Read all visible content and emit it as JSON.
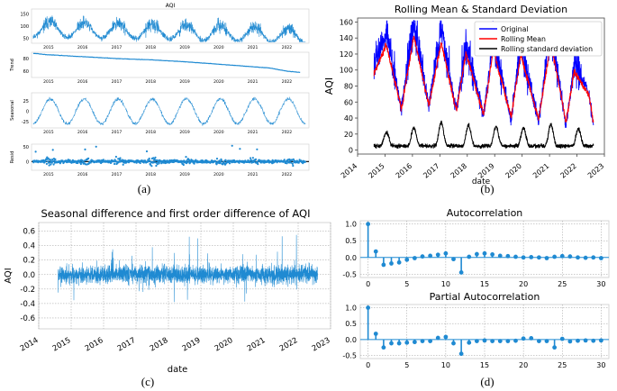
{
  "captions": {
    "a": "(a)",
    "b": "(b)",
    "c": "(c)",
    "d": "(d)"
  },
  "chart_data": [
    {
      "id": "a",
      "type": "line",
      "subplots": [
        {
          "name": "observed",
          "title": "AQI",
          "ylabel": "",
          "yticks": [
            "150",
            "100",
            "50"
          ],
          "ylim": [
            30,
            170
          ],
          "xticks": [
            "2015",
            "2016",
            "2017",
            "2018",
            "2019",
            "2020",
            "2021",
            "2022"
          ],
          "style": "line"
        },
        {
          "name": "trend",
          "ylabel": "Trend",
          "yticks": [
            "80",
            "60"
          ],
          "ylim": [
            50,
            90
          ],
          "trend_points": [
            [
              2014.6,
              88
            ],
            [
              2015,
              86
            ],
            [
              2016,
              83
            ],
            [
              2017,
              80
            ],
            [
              2018,
              78
            ],
            [
              2019,
              75
            ],
            [
              2020,
              71
            ],
            [
              2021,
              67
            ],
            [
              2021.5,
              65
            ],
            [
              2022,
              60
            ],
            [
              2022.4,
              58
            ]
          ],
          "xticks": [
            "2015",
            "2016",
            "2017",
            "2018",
            "2019",
            "2020",
            "2021",
            "2022"
          ],
          "style": "line"
        },
        {
          "name": "seasonal",
          "ylabel": "Seasonal",
          "yticks": [
            "25",
            "0",
            "-25"
          ],
          "ylim": [
            -40,
            45
          ],
          "xticks": [
            "2015",
            "2016",
            "2017",
            "2018",
            "2019",
            "2020",
            "2021",
            "2022"
          ],
          "style": "line"
        },
        {
          "name": "resid",
          "ylabel": "Resid",
          "yticks": [
            "50",
            "0"
          ],
          "ylim": [
            -30,
            60
          ],
          "xticks": [
            "2015",
            "2016",
            "2017",
            "2018",
            "2019",
            "2020",
            "2021",
            "2022"
          ],
          "style": "scatter"
        }
      ],
      "colors": {
        "series": "#1f8ad2",
        "zero_line": "#000000"
      }
    },
    {
      "id": "b",
      "type": "line",
      "title": "Rolling Mean & Standard Deviation",
      "xlabel": "date",
      "ylabel": "AQI",
      "xlim": [
        2014,
        2023
      ],
      "ylim": [
        -5,
        165
      ],
      "yticks": [
        0,
        20,
        40,
        60,
        80,
        100,
        120,
        140,
        160
      ],
      "xticks": [
        "2014",
        "2015",
        "2016",
        "2017",
        "2018",
        "2019",
        "2020",
        "2021",
        "2022",
        "2023"
      ],
      "legend": {
        "position": "top-right",
        "entries": [
          "Original",
          "Rolling Mean",
          "Rolling standard deviation"
        ]
      },
      "series": [
        {
          "name": "Original",
          "color": "#0000ff",
          "peaks": [
            [
              2014.6,
              105
            ],
            [
              2015.05,
              148
            ],
            [
              2016.05,
              162
            ],
            [
              2017.05,
              152
            ],
            [
              2017.95,
              135
            ],
            [
              2018.95,
              140
            ],
            [
              2019.95,
              133
            ],
            [
              2021.05,
              152
            ],
            [
              2021.9,
              108
            ],
            [
              2022.45,
              70
            ]
          ],
          "troughs": [
            [
              2015.6,
              50
            ],
            [
              2016.6,
              55
            ],
            [
              2017.6,
              48
            ],
            [
              2018.6,
              42
            ],
            [
              2019.6,
              38
            ],
            [
              2020.6,
              35
            ],
            [
              2021.6,
              30
            ],
            [
              2022.6,
              28
            ]
          ]
        },
        {
          "name": "Rolling Mean",
          "color": "#ff0000"
        },
        {
          "name": "Rolling standard deviation",
          "color": "#000000",
          "peaks": [
            [
              2015.05,
              20
            ],
            [
              2016.05,
              27
            ],
            [
              2017.05,
              35
            ],
            [
              2018.05,
              30
            ],
            [
              2019.05,
              29
            ],
            [
              2020.05,
              26
            ],
            [
              2021.05,
              32
            ],
            [
              2021.95,
              25
            ]
          ],
          "baseline": 5
        }
      ]
    },
    {
      "id": "c",
      "type": "line",
      "title": "Seasonal difference and first order difference of AQI",
      "xlabel": "date",
      "ylabel": "AQI",
      "xlim": [
        2014,
        2023
      ],
      "ylim": [
        -0.75,
        0.72
      ],
      "yticks": [
        0.6,
        0.4,
        0.2,
        0.0,
        -0.2,
        -0.4,
        -0.6
      ],
      "xticks": [
        "2014",
        "2015",
        "2016",
        "2017",
        "2018",
        "2019",
        "2020",
        "2021",
        "2022",
        "2023"
      ],
      "grid": true,
      "colors": {
        "series": "#1f8ad2"
      }
    },
    {
      "id": "d1",
      "type": "bar",
      "title": "Autocorrelation",
      "xlim": [
        -1,
        31
      ],
      "ylim": [
        -0.6,
        1.1
      ],
      "yticks": [
        1.0,
        0.5,
        0.0,
        -0.5
      ],
      "xticks": [
        0,
        5,
        10,
        15,
        20,
        25,
        30
      ],
      "grid": true,
      "lags": [
        0,
        1,
        2,
        3,
        4,
        5,
        6,
        7,
        8,
        9,
        10,
        11,
        12,
        13,
        14,
        15,
        16,
        17,
        18,
        19,
        20,
        21,
        22,
        23,
        24,
        25,
        26,
        27,
        28,
        29,
        30
      ],
      "values": [
        1.0,
        0.18,
        -0.22,
        -0.18,
        -0.15,
        -0.07,
        -0.02,
        0.03,
        0.05,
        0.08,
        0.12,
        -0.05,
        -0.45,
        0.02,
        0.1,
        0.12,
        0.09,
        0.05,
        0.04,
        0.02,
        0.0,
        0.01,
        0.0,
        -0.02,
        0.02,
        0.04,
        0.03,
        0.0,
        -0.01,
        0.0,
        -0.02
      ],
      "colors": {
        "series": "#1f8ad2"
      }
    },
    {
      "id": "d2",
      "type": "bar",
      "title": "Partial Autocorrelation",
      "xlim": [
        -1,
        31
      ],
      "ylim": [
        -0.6,
        1.1
      ],
      "yticks": [
        1.0,
        0.5,
        0.0,
        -0.5
      ],
      "xticks": [
        0,
        5,
        10,
        15,
        20,
        25,
        30
      ],
      "grid": true,
      "lags": [
        0,
        1,
        2,
        3,
        4,
        5,
        6,
        7,
        8,
        9,
        10,
        11,
        12,
        13,
        14,
        15,
        16,
        17,
        18,
        19,
        20,
        21,
        22,
        23,
        24,
        25,
        26,
        27,
        28,
        29,
        30
      ],
      "values": [
        1.0,
        0.18,
        -0.25,
        -0.12,
        -0.12,
        -0.1,
        -0.08,
        -0.05,
        -0.05,
        0.05,
        0.08,
        -0.12,
        -0.45,
        -0.1,
        -0.05,
        -0.03,
        -0.05,
        -0.05,
        -0.05,
        -0.04,
        0.03,
        0.04,
        -0.05,
        -0.05,
        -0.25,
        0.02,
        -0.06,
        -0.04,
        -0.03,
        -0.04,
        -0.03
      ],
      "colors": {
        "series": "#1f8ad2"
      }
    }
  ]
}
